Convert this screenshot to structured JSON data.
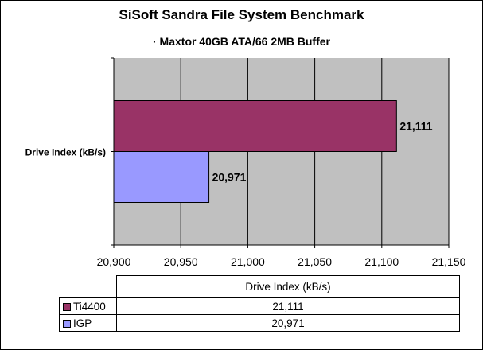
{
  "chart_data": {
    "type": "bar",
    "orientation": "horizontal",
    "title": "SiSoft Sandra File System Benchmark",
    "subtitle": "· Maxtor 40GB ATA/66 2MB Buffer",
    "categories": [
      "Drive Index (kB/s)"
    ],
    "series": [
      {
        "name": "Ti4400",
        "values": [
          21111
        ],
        "label": "21,111",
        "color": "#993366"
      },
      {
        "name": "IGP",
        "values": [
          20971
        ],
        "label": "20,971",
        "color": "#9999ff"
      }
    ],
    "xlim": [
      20900,
      21150
    ],
    "xticks": [
      20900,
      20950,
      21000,
      21050,
      21100,
      21150
    ],
    "xtick_labels": [
      "20,900",
      "20,950",
      "21,000",
      "21,050",
      "21,100",
      "21,150"
    ],
    "grid": true,
    "plot_background": "#c0c0c0",
    "data_table": {
      "header": "Drive Index (kB/s)",
      "rows": [
        {
          "name": "Ti4400",
          "value": "21,111"
        },
        {
          "name": "IGP",
          "value": "20,971"
        }
      ]
    }
  }
}
